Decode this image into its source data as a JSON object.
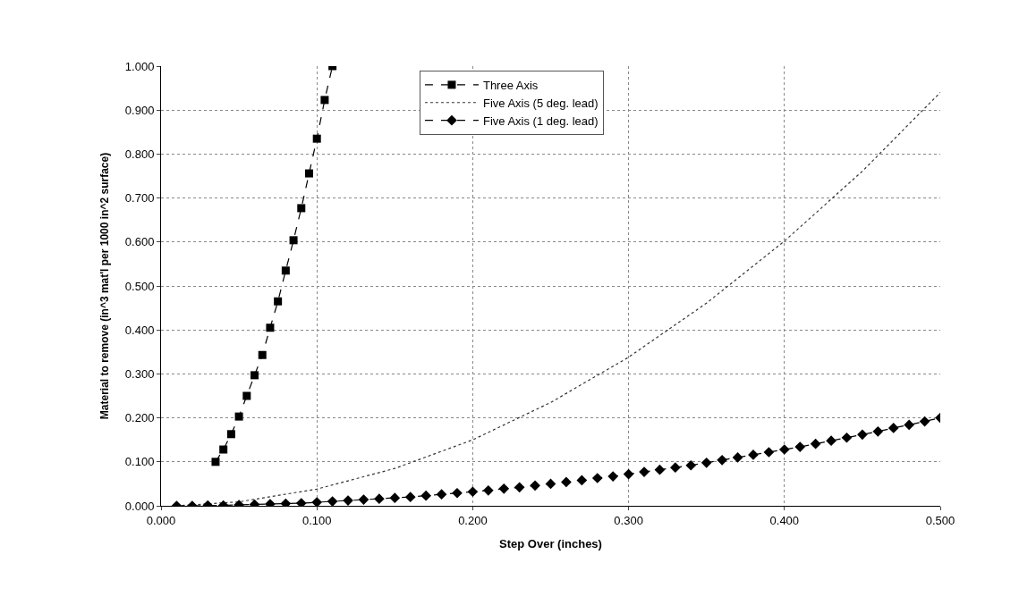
{
  "chart_data": {
    "type": "line",
    "xlabel": "Step Over (inches)",
    "ylabel": "Material to remove (in^3 mat'l per 1000 in^2 surface)",
    "xlim": [
      0,
      0.5
    ],
    "xticks": [
      {
        "value": 0,
        "label": "0.000"
      },
      {
        "value": 0.1,
        "label": "0.100"
      },
      {
        "value": 0.2,
        "label": "0.200"
      },
      {
        "value": 0.3,
        "label": "0.300"
      },
      {
        "value": 0.4,
        "label": "0.400"
      },
      {
        "value": 0.5,
        "label": "0.500"
      }
    ],
    "ylim": [
      0,
      1
    ],
    "yticks": [
      {
        "value": 0,
        "label": "0.000"
      },
      {
        "value": 0.1,
        "label": "0.100"
      },
      {
        "value": 0.2,
        "label": "0.200"
      },
      {
        "value": 0.3,
        "label": "0.300"
      },
      {
        "value": 0.4,
        "label": "0.400"
      },
      {
        "value": 0.5,
        "label": "0.500"
      },
      {
        "value": 0.6,
        "label": "0.600"
      },
      {
        "value": 0.7,
        "label": "0.700"
      },
      {
        "value": 0.8,
        "label": "0.800"
      },
      {
        "value": 0.9,
        "label": "0.900"
      },
      {
        "value": 1.0,
        "label": "1.000"
      }
    ],
    "grid": true,
    "legend": "top",
    "series": [
      {
        "name": "Three Axis",
        "color": "#000000",
        "marker": "square",
        "line_style": "dashed",
        "x": [
          0.035,
          0.04,
          0.045,
          0.05,
          0.055,
          0.06,
          0.065,
          0.07,
          0.075,
          0.08,
          0.085,
          0.09,
          0.095,
          0.1,
          0.105,
          0.11
        ],
        "values": [
          0.1,
          0.128,
          0.163,
          0.203,
          0.25,
          0.297,
          0.343,
          0.405,
          0.465,
          0.535,
          0.604,
          0.677,
          0.756,
          0.835,
          0.923,
          1.0
        ]
      },
      {
        "name": "Five Axis (5 deg. lead)",
        "color": "#333333",
        "marker": "none",
        "line_style": "dotted",
        "x": [
          0.01,
          0.05,
          0.1,
          0.15,
          0.2,
          0.25,
          0.3,
          0.35,
          0.4,
          0.45,
          0.5
        ],
        "values": [
          0.0,
          0.009,
          0.038,
          0.085,
          0.15,
          0.235,
          0.338,
          0.461,
          0.602,
          0.761,
          0.94
        ]
      },
      {
        "name": "Five Axis (1 deg. lead)",
        "color": "#000000",
        "marker": "diamond",
        "line_style": "dashed",
        "x": [
          0.01,
          0.02,
          0.03,
          0.04,
          0.05,
          0.06,
          0.07,
          0.08,
          0.09,
          0.1,
          0.11,
          0.12,
          0.13,
          0.14,
          0.15,
          0.16,
          0.17,
          0.18,
          0.19,
          0.2,
          0.21,
          0.22,
          0.23,
          0.24,
          0.25,
          0.26,
          0.27,
          0.28,
          0.29,
          0.3,
          0.31,
          0.32,
          0.33,
          0.34,
          0.35,
          0.36,
          0.37,
          0.38,
          0.39,
          0.4,
          0.41,
          0.42,
          0.43,
          0.44,
          0.45,
          0.46,
          0.47,
          0.48,
          0.49,
          0.5
        ],
        "values": [
          0.0,
          0.0,
          0.001,
          0.001,
          0.002,
          0.003,
          0.004,
          0.005,
          0.006,
          0.008,
          0.01,
          0.012,
          0.014,
          0.016,
          0.018,
          0.02,
          0.023,
          0.026,
          0.029,
          0.032,
          0.035,
          0.039,
          0.042,
          0.046,
          0.05,
          0.054,
          0.058,
          0.063,
          0.067,
          0.072,
          0.077,
          0.082,
          0.087,
          0.092,
          0.098,
          0.104,
          0.11,
          0.116,
          0.122,
          0.128,
          0.134,
          0.141,
          0.148,
          0.155,
          0.162,
          0.169,
          0.177,
          0.184,
          0.192,
          0.2
        ]
      }
    ]
  }
}
